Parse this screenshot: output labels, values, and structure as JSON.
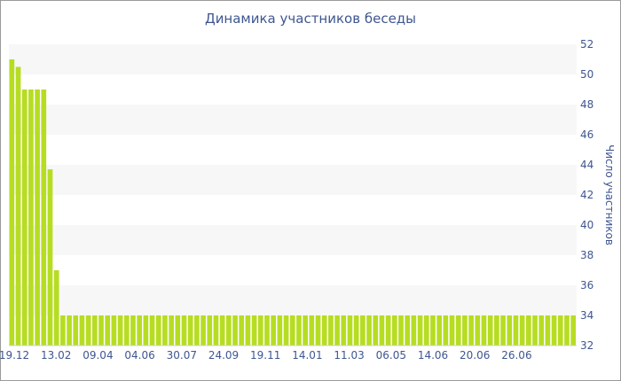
{
  "chart_data": {
    "type": "bar",
    "title": "Динамика участников беседы",
    "ylabel": "Число участников",
    "xlabel": "",
    "y_axis_position": "right",
    "ylim": [
      32,
      52
    ],
    "yticks": [
      32,
      34,
      36,
      38,
      40,
      42,
      44,
      46,
      48,
      50,
      52
    ],
    "xtick_labels": [
      "19.12",
      "13.02",
      "09.04",
      "04.06",
      "30.07",
      "24.09",
      "19.11",
      "14.01",
      "11.03",
      "06.05",
      "14.06",
      "20.06",
      "26.06"
    ],
    "grid": "horizontal alternating bands",
    "bar_color": "#b6dd22",
    "values": [
      51,
      50.5,
      49,
      49,
      49,
      49,
      43.7,
      37,
      34,
      34,
      34,
      34,
      34,
      34,
      34,
      34,
      34,
      34,
      34,
      34,
      34,
      34,
      34,
      34,
      34,
      34,
      34,
      34,
      34,
      34,
      34,
      34,
      34,
      34,
      34,
      34,
      34,
      34,
      34,
      34,
      34,
      34,
      34,
      34,
      34,
      34,
      34,
      34,
      34,
      34,
      34,
      34,
      34,
      34,
      34,
      34,
      34,
      34,
      34,
      34,
      34,
      34,
      34,
      34,
      34,
      34,
      34,
      34,
      34,
      34,
      34,
      34,
      34,
      34,
      34,
      34,
      34,
      34,
      34,
      34,
      34,
      34,
      34,
      34,
      34,
      34,
      34,
      34,
      34
    ]
  }
}
